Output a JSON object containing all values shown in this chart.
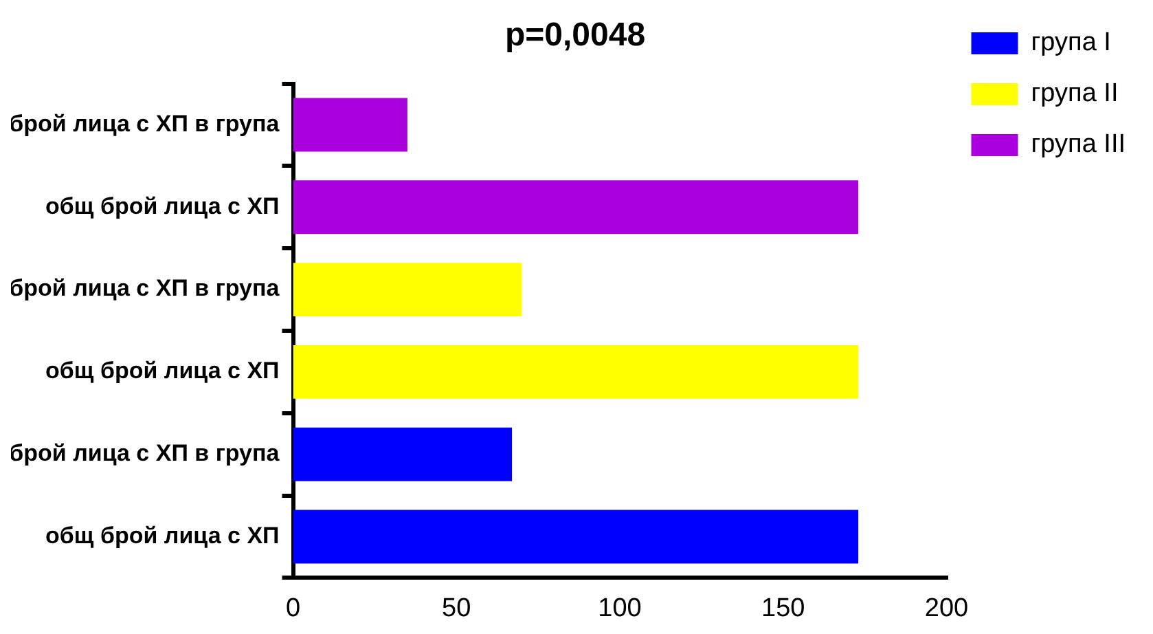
{
  "chart_data": {
    "type": "bar",
    "orientation": "horizontal",
    "title": "p=0,0048",
    "categories": [
      "брой лица с ХП в група",
      "общ брой лица с ХП",
      "брой лица с ХП в група",
      "общ брой лица с ХП",
      "брой лица с ХП в група",
      "общ брой лица с ХП"
    ],
    "series": [
      {
        "name": "група I",
        "color": "#0000ff",
        "values": [
          null,
          null,
          null,
          null,
          67,
          173
        ]
      },
      {
        "name": "група II",
        "color": "#ffff00",
        "values": [
          null,
          null,
          70,
          173,
          null,
          null
        ]
      },
      {
        "name": "група III",
        "color": "#aa00dd",
        "values": [
          35,
          173,
          null,
          null,
          null,
          null
        ]
      }
    ],
    "xlim": [
      0,
      200
    ],
    "xticks": [
      0,
      50,
      100,
      150,
      200
    ],
    "grid": false,
    "legend": "right"
  }
}
